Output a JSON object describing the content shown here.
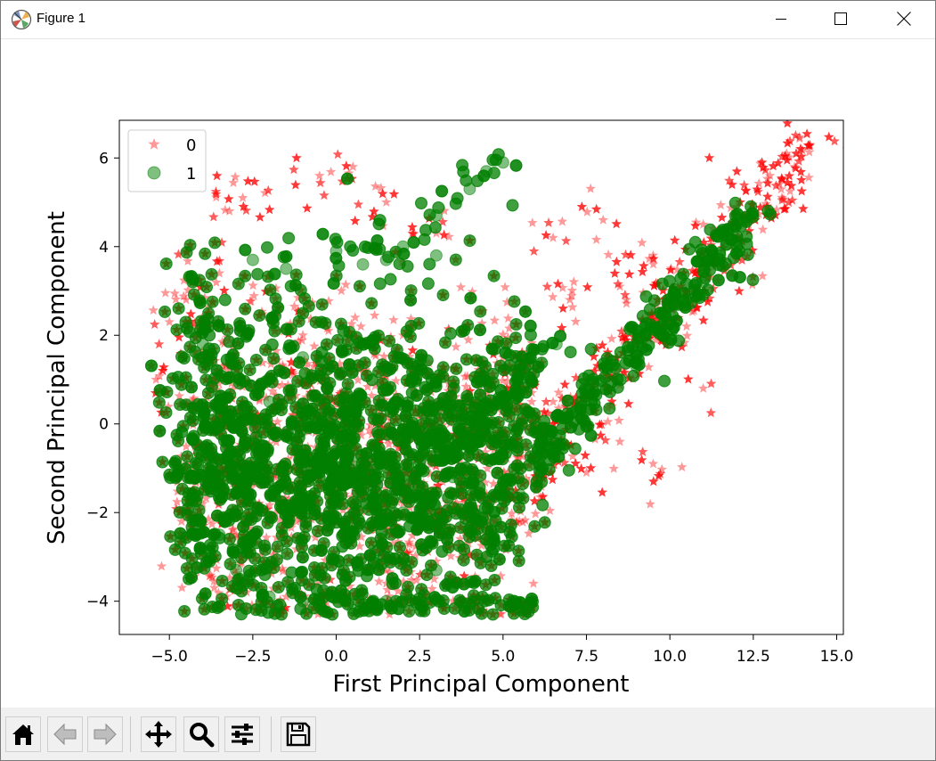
{
  "window": {
    "title": "Figure 1"
  },
  "toolbar": {
    "buttons": [
      {
        "name": "home-button",
        "icon": "home-icon"
      },
      {
        "name": "back-button",
        "icon": "arrow-left-icon"
      },
      {
        "name": "forward-button",
        "icon": "arrow-right-icon"
      },
      {
        "name": "pan-button",
        "icon": "move-icon"
      },
      {
        "name": "zoom-button",
        "icon": "magnifier-icon"
      },
      {
        "name": "configure-subplots-button",
        "icon": "sliders-icon"
      },
      {
        "name": "save-button",
        "icon": "floppy-disk-icon"
      }
    ]
  },
  "chart_data": {
    "type": "scatter",
    "title": "",
    "xlabel": "First Principal Component",
    "ylabel": "Second Principal Component",
    "xlim": [
      -6.5,
      15.2
    ],
    "ylim": [
      -4.75,
      6.85
    ],
    "xticks": [
      -5.0,
      -2.5,
      0.0,
      2.5,
      5.0,
      7.5,
      10.0,
      12.5,
      15.0
    ],
    "xtick_labels": [
      "−5.0",
      "−2.5",
      "0.0",
      "2.5",
      "5.0",
      "7.5",
      "10.0",
      "12.5",
      "15.0"
    ],
    "yticks": [
      -4,
      -2,
      0,
      2,
      4,
      6
    ],
    "ytick_labels": [
      "−4",
      "−2",
      "0",
      "2",
      "4",
      "6"
    ],
    "grid": false,
    "legend": {
      "position": "top-left"
    },
    "series": [
      {
        "name": "0",
        "marker": "star",
        "color": "#ff0000",
        "alpha": 0.4,
        "point_count": 6000,
        "shape_note": "dense cloud spanning x -5.5..14.2, y -4.2..6.3; upper-right tail along a rising line",
        "sample_points": [
          [
            -5.4,
            1.0
          ],
          [
            -5.0,
            2.3
          ],
          [
            -4.5,
            2.8
          ],
          [
            -3.5,
            3.4
          ],
          [
            -3.2,
            4.8
          ],
          [
            -2.8,
            5.1
          ],
          [
            -0.5,
            5.6
          ],
          [
            0.5,
            5.8
          ],
          [
            1.5,
            5.0
          ],
          [
            3.0,
            4.3
          ],
          [
            6.5,
            4.2
          ],
          [
            8.0,
            4.6
          ],
          [
            7.0,
            2.8
          ],
          [
            8.5,
            3.1
          ],
          [
            9.5,
            3.8
          ],
          [
            11.0,
            4.5
          ],
          [
            12.0,
            4.9
          ],
          [
            13.0,
            5.6
          ],
          [
            14.2,
            6.3
          ],
          [
            13.5,
            6.1
          ],
          [
            12.0,
            3.7
          ],
          [
            9.5,
            -0.9
          ],
          [
            8.5,
            -0.4
          ],
          [
            7.5,
            -1.1
          ],
          [
            6.0,
            -1.5
          ],
          [
            4.5,
            -2.5
          ],
          [
            3.0,
            -3.1
          ],
          [
            1.5,
            -3.6
          ],
          [
            0.0,
            -4.0
          ],
          [
            -1.5,
            -3.9
          ],
          [
            -2.5,
            -3.6
          ],
          [
            -4.0,
            -1.8
          ],
          [
            -3.0,
            0.0
          ],
          [
            0.0,
            0.5
          ],
          [
            1.0,
            -0.5
          ],
          [
            3.0,
            -1.5
          ],
          [
            -1.0,
            2.0
          ],
          [
            2.0,
            2.0
          ],
          [
            5.0,
            1.5
          ],
          [
            6.5,
            0.5
          ],
          [
            10.5,
            2.2
          ],
          [
            11.0,
            0.8
          ]
        ]
      },
      {
        "name": "1",
        "marker": "circle",
        "color": "#008000",
        "alpha": 0.5,
        "point_count": 4000,
        "shape_note": "dense cloud spanning x -4.3..12.5, y -4.2..5.9; tail along a rising line to upper right",
        "sample_points": [
          [
            -4.0,
            1.8
          ],
          [
            -3.5,
            2.2
          ],
          [
            -2.5,
            3.7
          ],
          [
            -1.5,
            3.5
          ],
          [
            0.0,
            3.9
          ],
          [
            0.8,
            3.6
          ],
          [
            2.0,
            4.0
          ],
          [
            3.0,
            4.7
          ],
          [
            4.0,
            5.3
          ],
          [
            4.5,
            5.7
          ],
          [
            5.0,
            5.9
          ],
          [
            1.5,
            3.7
          ],
          [
            3.0,
            3.8
          ],
          [
            -4.0,
            -1.2
          ],
          [
            -3.5,
            -2.5
          ],
          [
            -3.0,
            -3.3
          ],
          [
            -2.0,
            -3.9
          ],
          [
            -1.0,
            -4.0
          ],
          [
            0.5,
            -4.2
          ],
          [
            1.5,
            -4.0
          ],
          [
            3.0,
            -3.3
          ],
          [
            4.5,
            -2.6
          ],
          [
            5.5,
            -1.6
          ],
          [
            6.5,
            -0.6
          ],
          [
            7.5,
            0.3
          ],
          [
            8.0,
            0.8
          ],
          [
            9.0,
            1.3
          ],
          [
            10.0,
            2.3
          ],
          [
            10.5,
            2.8
          ],
          [
            11.0,
            3.2
          ],
          [
            11.5,
            3.8
          ],
          [
            12.0,
            4.5
          ],
          [
            12.3,
            4.6
          ],
          [
            6.6,
            1.8
          ],
          [
            5.5,
            1.0
          ],
          [
            3.0,
            0.3
          ],
          [
            0.5,
            -0.8
          ],
          [
            -2.0,
            0.5
          ],
          [
            -1.0,
            1.5
          ],
          [
            2.0,
            -2.0
          ],
          [
            3.5,
            -1.2
          ],
          [
            4.5,
            -2.1
          ]
        ]
      }
    ]
  }
}
